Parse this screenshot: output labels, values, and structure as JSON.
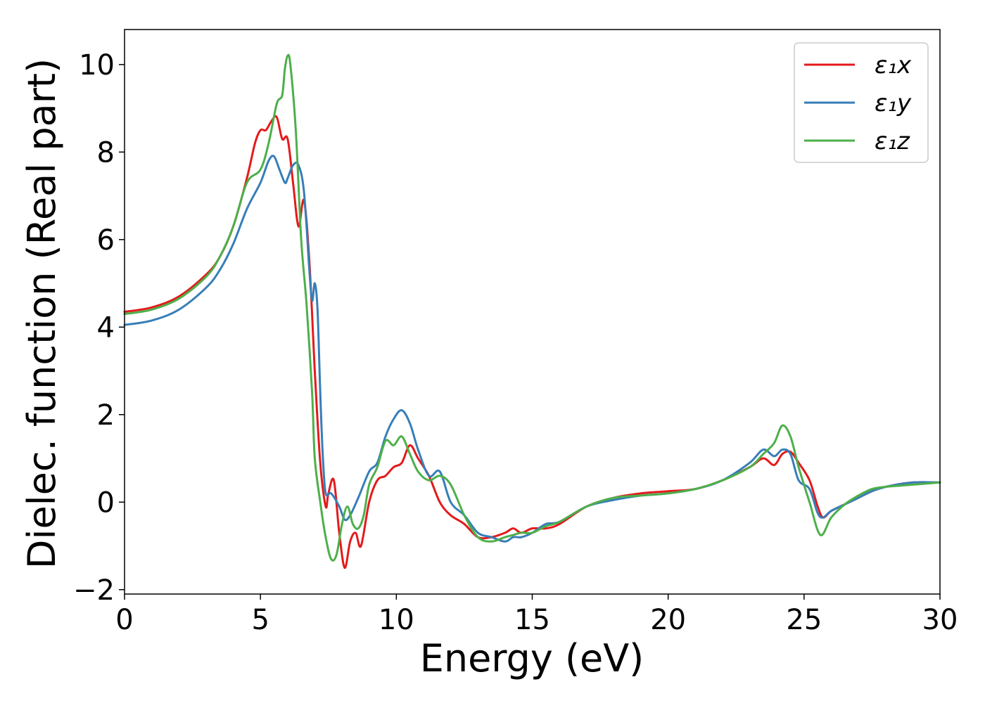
{
  "chart_data": {
    "type": "line",
    "xlabel": "Energy (eV)",
    "ylabel": "Dielec. function (Real part)",
    "xlim": [
      0,
      30
    ],
    "ylim": [
      -2.1,
      10.8
    ],
    "xticks": [
      0,
      5,
      10,
      15,
      20,
      25,
      30
    ],
    "xtick_labels": [
      "0",
      "5",
      "10",
      "15",
      "20",
      "25",
      "30"
    ],
    "yticks": [
      -2,
      0,
      2,
      4,
      6,
      8,
      10
    ],
    "ytick_labels": [
      "−2",
      "0",
      "2",
      "4",
      "6",
      "8",
      "10"
    ],
    "grid": false,
    "legend_position": "top-right",
    "series": [
      {
        "name": "ε₁x",
        "color": "#e41a1c",
        "x": [
          0,
          1,
          2,
          3,
          3.5,
          4,
          4.5,
          4.8,
          5.0,
          5.2,
          5.4,
          5.6,
          5.8,
          6.0,
          6.2,
          6.4,
          6.6,
          6.8,
          7.0,
          7.2,
          7.4,
          7.5,
          7.7,
          7.9,
          8.1,
          8.3,
          8.5,
          8.7,
          9.0,
          9.3,
          9.6,
          9.9,
          10.2,
          10.5,
          10.8,
          11.2,
          11.6,
          12.0,
          12.5,
          13.0,
          13.5,
          14.0,
          14.3,
          14.6,
          15.0,
          15.5,
          16.0,
          17.0,
          18.0,
          19.0,
          20.0,
          21.0,
          22.0,
          23.0,
          23.5,
          23.9,
          24.2,
          24.5,
          24.8,
          25.2,
          25.5,
          25.7,
          26.0,
          26.5,
          27.0,
          27.5,
          28.0,
          29.0,
          30.0
        ],
        "y": [
          4.35,
          4.45,
          4.7,
          5.2,
          5.6,
          6.3,
          7.4,
          8.2,
          8.5,
          8.5,
          8.7,
          8.8,
          8.3,
          8.3,
          7.3,
          6.3,
          6.9,
          5.5,
          3.0,
          0.9,
          -0.1,
          0.2,
          0.5,
          -0.7,
          -1.5,
          -0.9,
          -0.7,
          -1.0,
          0.0,
          0.5,
          0.6,
          0.8,
          0.9,
          1.3,
          1.0,
          0.6,
          0.0,
          -0.3,
          -0.5,
          -0.8,
          -0.8,
          -0.7,
          -0.6,
          -0.7,
          -0.6,
          -0.6,
          -0.5,
          -0.1,
          0.1,
          0.2,
          0.25,
          0.3,
          0.5,
          0.8,
          1.0,
          0.85,
          1.1,
          1.15,
          0.9,
          0.5,
          -0.1,
          -0.35,
          -0.2,
          -0.05,
          0.1,
          0.25,
          0.35,
          0.45,
          0.45
        ]
      },
      {
        "name": "ε₁y",
        "color": "#377eb8",
        "x": [
          0,
          1,
          2,
          3,
          3.5,
          4,
          4.5,
          5.0,
          5.3,
          5.5,
          5.7,
          5.9,
          6.0,
          6.2,
          6.4,
          6.6,
          6.8,
          6.9,
          7.0,
          7.1,
          7.2,
          7.3,
          7.4,
          7.6,
          7.9,
          8.1,
          8.3,
          8.6,
          9.0,
          9.3,
          9.6,
          9.9,
          10.2,
          10.5,
          10.8,
          11.2,
          11.6,
          12.0,
          12.5,
          13.0,
          13.5,
          14.0,
          14.3,
          14.6,
          15.0,
          15.5,
          16.0,
          17.0,
          18.0,
          19.0,
          20.0,
          21.0,
          22.0,
          23.0,
          23.5,
          23.9,
          24.2,
          24.5,
          24.8,
          25.2,
          25.5,
          25.7,
          26.0,
          26.5,
          27.0,
          27.5,
          28.0,
          29.0,
          30.0
        ],
        "y": [
          4.05,
          4.15,
          4.4,
          4.9,
          5.3,
          5.9,
          6.7,
          7.3,
          7.8,
          7.9,
          7.6,
          7.3,
          7.4,
          7.7,
          7.7,
          7.1,
          5.3,
          4.6,
          5.0,
          4.4,
          2.5,
          1.0,
          0.2,
          0.2,
          -0.1,
          -0.4,
          -0.3,
          0.1,
          0.7,
          0.9,
          1.5,
          1.9,
          2.1,
          1.8,
          1.2,
          0.6,
          0.7,
          0.0,
          -0.3,
          -0.7,
          -0.8,
          -0.9,
          -0.8,
          -0.8,
          -0.7,
          -0.5,
          -0.45,
          -0.1,
          0.05,
          0.15,
          0.2,
          0.3,
          0.5,
          0.9,
          1.2,
          1.05,
          1.2,
          1.1,
          0.5,
          0.3,
          -0.25,
          -0.35,
          -0.2,
          -0.05,
          0.1,
          0.25,
          0.35,
          0.45,
          0.45
        ]
      },
      {
        "name": "ε₁z",
        "color": "#4daf4a",
        "x": [
          0,
          1,
          2,
          3,
          3.5,
          4,
          4.5,
          5.0,
          5.3,
          5.6,
          5.8,
          5.9,
          6.0,
          6.1,
          6.3,
          6.5,
          6.7,
          6.9,
          7.0,
          7.2,
          7.4,
          7.6,
          7.8,
          8.0,
          8.2,
          8.4,
          8.6,
          8.8,
          9.0,
          9.3,
          9.6,
          9.9,
          10.2,
          10.5,
          10.8,
          11.2,
          11.6,
          12.0,
          12.5,
          13.0,
          13.5,
          14.0,
          14.3,
          14.6,
          15.0,
          15.5,
          16.0,
          17.0,
          18.0,
          19.0,
          20.0,
          21.0,
          22.0,
          23.0,
          23.5,
          23.9,
          24.2,
          24.5,
          24.8,
          25.2,
          25.6,
          26.0,
          26.5,
          27.0,
          27.5,
          28.0,
          29.0,
          30.0
        ],
        "y": [
          4.3,
          4.4,
          4.65,
          5.15,
          5.6,
          6.3,
          7.3,
          7.6,
          8.2,
          9.1,
          9.3,
          9.9,
          10.2,
          10.0,
          8.5,
          6.0,
          4.5,
          2.5,
          1.0,
          0.0,
          -0.8,
          -1.3,
          -1.2,
          -0.5,
          -0.1,
          -0.5,
          -0.6,
          -0.3,
          0.4,
          0.8,
          1.4,
          1.3,
          1.5,
          1.1,
          0.7,
          0.5,
          0.6,
          0.4,
          -0.3,
          -0.8,
          -0.9,
          -0.8,
          -0.75,
          -0.7,
          -0.7,
          -0.55,
          -0.45,
          -0.1,
          0.1,
          0.15,
          0.2,
          0.3,
          0.5,
          0.8,
          1.1,
          1.35,
          1.75,
          1.5,
          0.8,
          0.0,
          -0.75,
          -0.35,
          -0.05,
          0.15,
          0.3,
          0.35,
          0.4,
          0.45
        ]
      }
    ]
  }
}
